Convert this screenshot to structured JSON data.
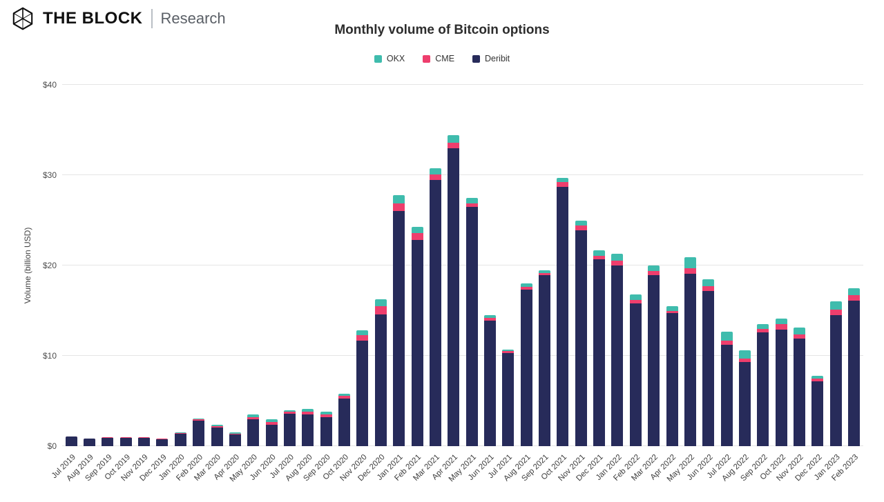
{
  "header": {
    "brand": "THE BLOCK",
    "brand_sub": "Research",
    "title": "Monthly volume of Bitcoin options"
  },
  "legend": [
    {
      "label": "OKX",
      "color": "#3fbcad"
    },
    {
      "label": "CME",
      "color": "#ee3e6d"
    },
    {
      "label": "Deribit",
      "color": "#272b5a"
    }
  ],
  "chart_data": {
    "type": "bar",
    "stacked": true,
    "title": "Monthly volume of Bitcoin options",
    "xlabel": "",
    "ylabel": "Volume (billion USD)",
    "ylim": [
      0,
      40
    ],
    "y_ticks": [
      0,
      10,
      20,
      30,
      40
    ],
    "y_tick_labels": [
      "$0",
      "$10",
      "$20",
      "$30",
      "$40"
    ],
    "grid": true,
    "legend_position": "top",
    "categories": [
      "Jul 2019",
      "Aug 2019",
      "Sep 2019",
      "Oct 2019",
      "Nov 2019",
      "Dec 2019",
      "Jan 2020",
      "Feb 2020",
      "Mar 2020",
      "Apr 2020",
      "May 2020",
      "Jun 2020",
      "Jul 2020",
      "Aug 2020",
      "Sep 2020",
      "Oct 2020",
      "Nov 2020",
      "Dec 2020",
      "Jan 2021",
      "Feb 2021",
      "Mar 2021",
      "Apr 2021",
      "May 2021",
      "Jun 2021",
      "Jul 2021",
      "Aug 2021",
      "Sep 2021",
      "Oct 2021",
      "Nov 2021",
      "Dec 2021",
      "Jan 2022",
      "Feb 2022",
      "Mar 2022",
      "Apr 2022",
      "May 2022",
      "Jun 2022",
      "Jul 2022",
      "Aug 2022",
      "Sep 2022",
      "Oct 2022",
      "Nov 2022",
      "Dec 2022",
      "Jan 2023",
      "Feb 2023"
    ],
    "series": [
      {
        "name": "Deribit",
        "color": "#272b5a",
        "values": [
          1.05,
          0.85,
          0.95,
          0.95,
          0.95,
          0.8,
          1.4,
          2.8,
          2.05,
          1.3,
          3.0,
          2.4,
          3.6,
          3.5,
          3.2,
          5.3,
          11.7,
          14.6,
          26.0,
          22.8,
          29.5,
          33.0,
          26.5,
          13.9,
          10.3,
          17.3,
          18.9,
          28.7,
          23.9,
          20.7,
          20.0,
          15.8,
          18.9,
          14.7,
          19.1,
          17.2,
          11.2,
          9.3,
          12.6,
          12.9,
          11.9,
          7.2,
          14.5,
          16.1
        ]
      },
      {
        "name": "CME",
        "color": "#ee3e6d",
        "values": [
          0.03,
          0.02,
          0.03,
          0.03,
          0.03,
          0.03,
          0.05,
          0.15,
          0.15,
          0.1,
          0.2,
          0.3,
          0.2,
          0.3,
          0.3,
          0.25,
          0.6,
          0.9,
          0.9,
          0.8,
          0.6,
          0.6,
          0.4,
          0.3,
          0.2,
          0.3,
          0.3,
          0.5,
          0.5,
          0.4,
          0.5,
          0.4,
          0.5,
          0.3,
          0.6,
          0.5,
          0.5,
          0.4,
          0.4,
          0.6,
          0.5,
          0.3,
          0.6,
          0.6
        ]
      },
      {
        "name": "OKX",
        "color": "#3fbcad",
        "values": [
          0,
          0,
          0,
          0,
          0,
          0,
          0.05,
          0.1,
          0.2,
          0.1,
          0.3,
          0.3,
          0.2,
          0.3,
          0.3,
          0.25,
          0.5,
          0.8,
          0.9,
          0.7,
          0.7,
          0.8,
          0.6,
          0.3,
          0.2,
          0.4,
          0.3,
          0.5,
          0.6,
          0.6,
          0.8,
          0.6,
          0.6,
          0.5,
          1.2,
          0.8,
          1.0,
          0.9,
          0.5,
          0.6,
          0.7,
          0.3,
          0.9,
          0.8
        ]
      }
    ]
  }
}
